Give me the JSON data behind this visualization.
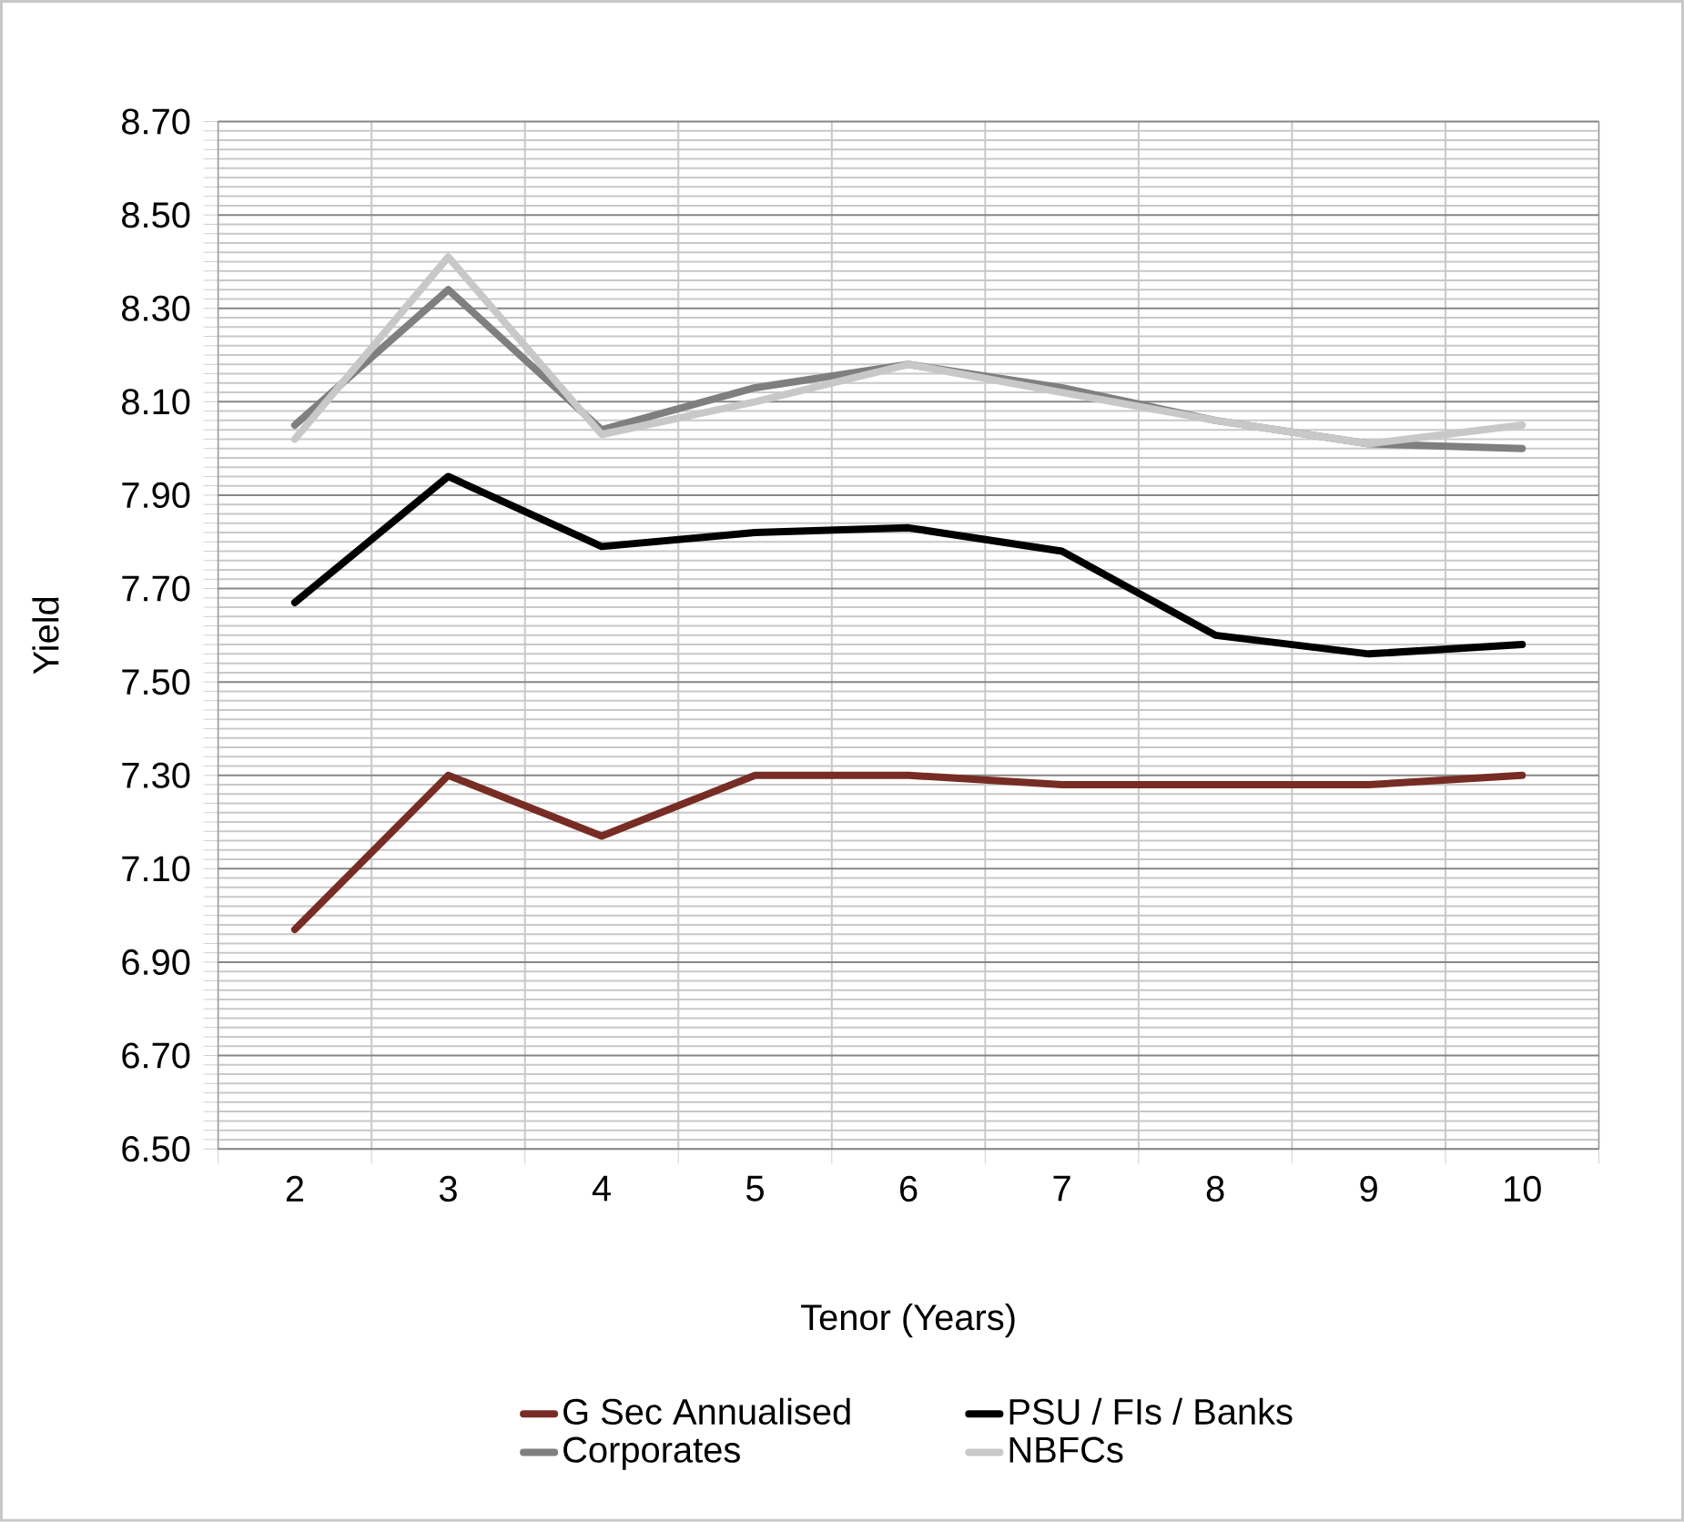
{
  "chart_data": {
    "type": "line",
    "xlabel": "Tenor (Years)",
    "ylabel": "Yield",
    "categories": [
      "2",
      "3",
      "4",
      "5",
      "6",
      "7",
      "8",
      "9",
      "10"
    ],
    "series": [
      {
        "name": "G Sec Annualised",
        "color": "#772c24",
        "values": [
          6.97,
          7.3,
          7.17,
          7.3,
          7.3,
          7.28,
          7.28,
          7.28,
          7.3
        ]
      },
      {
        "name": "PSU / FIs / Banks",
        "color": "#000000",
        "values": [
          7.67,
          7.94,
          7.79,
          7.82,
          7.83,
          7.78,
          7.6,
          7.56,
          7.58
        ]
      },
      {
        "name": "Corporates",
        "color": "#7f7f7f",
        "values": [
          8.05,
          8.34,
          8.04,
          8.13,
          8.18,
          8.13,
          8.06,
          8.01,
          8.0
        ]
      },
      {
        "name": "NBFCs",
        "color": "#c8c8c8",
        "values": [
          8.02,
          8.41,
          8.03,
          8.1,
          8.18,
          8.12,
          8.06,
          8.01,
          8.05
        ]
      }
    ],
    "ylim": [
      6.5,
      8.7
    ],
    "yticks": [
      {
        "value": 6.5,
        "label": "6.50"
      },
      {
        "value": 6.7,
        "label": "6.70"
      },
      {
        "value": 6.9,
        "label": "6.90"
      },
      {
        "value": 7.1,
        "label": "7.10"
      },
      {
        "value": 7.3,
        "label": "7.30"
      },
      {
        "value": 7.5,
        "label": "7.50"
      },
      {
        "value": 7.7,
        "label": "7.70"
      },
      {
        "value": 7.9,
        "label": "7.90"
      },
      {
        "value": 8.1,
        "label": "8.10"
      },
      {
        "value": 8.3,
        "label": "8.30"
      },
      {
        "value": 8.5,
        "label": "8.50"
      },
      {
        "value": 8.7,
        "label": "8.70"
      }
    ],
    "grid": true,
    "legend": "bottom",
    "marker": "none",
    "line_style": "solid"
  }
}
